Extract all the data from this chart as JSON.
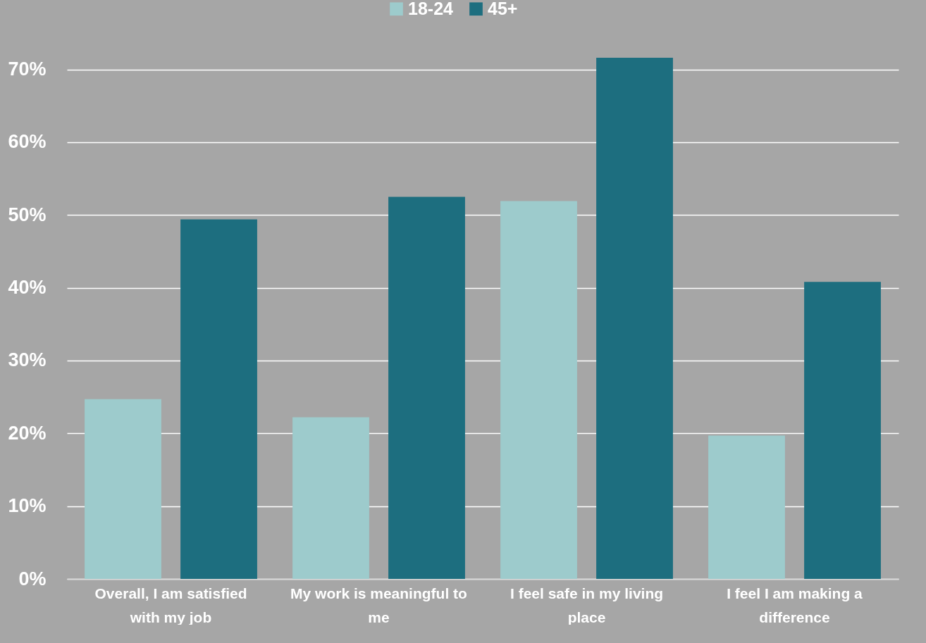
{
  "chart_data": {
    "type": "bar",
    "categories": [
      "Overall, I am satisfied with my job",
      "My work is meaningful to me",
      "I feel safe in my living place",
      "I feel I am making a difference"
    ],
    "series": [
      {
        "name": "18-24",
        "color": "#9dcbcc",
        "values": [
          24.7,
          22.2,
          51.9,
          19.7
        ]
      },
      {
        "name": "45+",
        "color": "#1d6e7f",
        "values": [
          49.4,
          52.5,
          71.6,
          40.8
        ]
      }
    ],
    "ylim": [
      0,
      71.6
    ],
    "yticks": [
      {
        "value": 0,
        "label": "0%"
      },
      {
        "value": 10,
        "label": "10%"
      },
      {
        "value": 20,
        "label": "20%"
      },
      {
        "value": 30,
        "label": "30%"
      },
      {
        "value": 40,
        "label": "40%"
      },
      {
        "value": 50,
        "label": "50%"
      },
      {
        "value": 60,
        "label": "60%"
      },
      {
        "value": 70,
        "label": "70%"
      }
    ],
    "grid": "y",
    "legend": "top"
  }
}
